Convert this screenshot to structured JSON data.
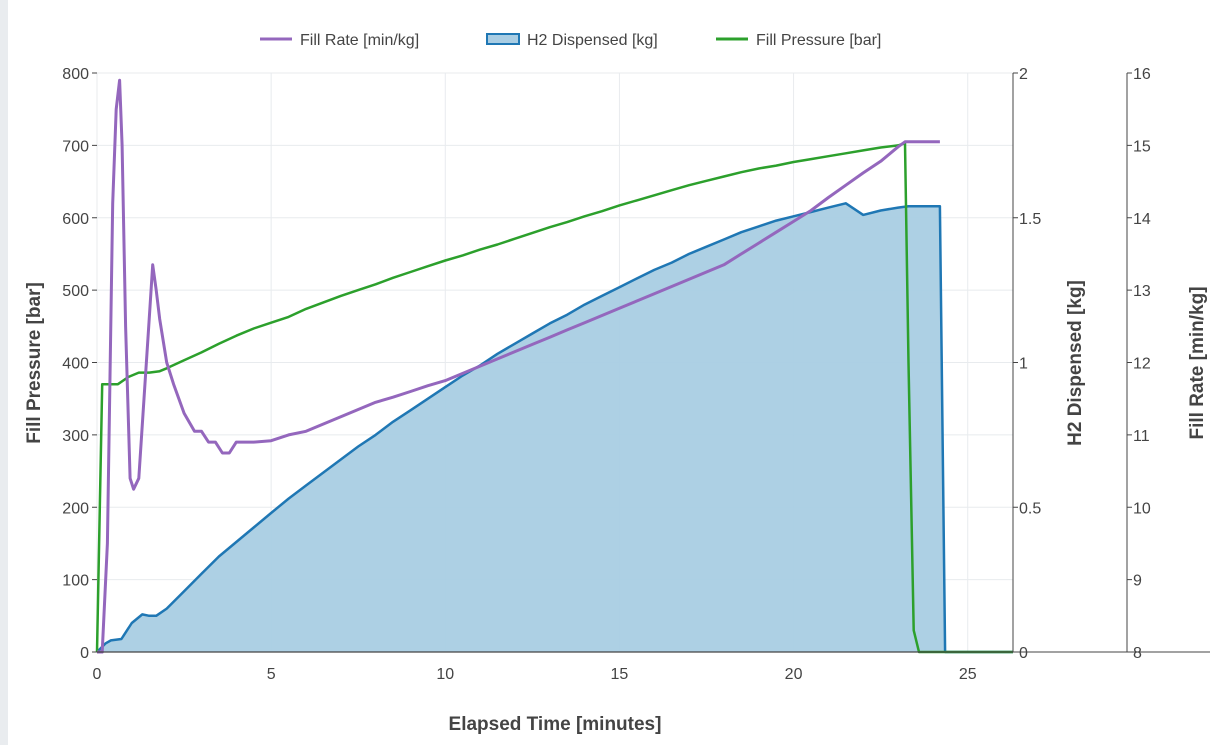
{
  "chart_data": {
    "type": "line",
    "xlabel": "Elapsed Time [minutes]",
    "xlim": [
      0,
      26.3
    ],
    "x_ticks": [
      "0",
      "5",
      "10",
      "15",
      "20",
      "25"
    ],
    "grid": true,
    "legend_position": "top-center",
    "axes": {
      "y_left": {
        "label": "Fill Pressure [bar]",
        "range": [
          0,
          800
        ],
        "ticks": [
          "0",
          "100",
          "200",
          "300",
          "400",
          "500",
          "600",
          "700",
          "800"
        ]
      },
      "y_right1": {
        "label": "H2 Dispensed [kg]",
        "range": [
          0,
          2
        ],
        "ticks": [
          "0",
          "0.5",
          "1",
          "1.5",
          "2"
        ]
      },
      "y_right2": {
        "label": "Fill Rate [min/kg]",
        "range": [
          8,
          16
        ],
        "ticks": [
          "8",
          "9",
          "10",
          "11",
          "12",
          "13",
          "14",
          "15",
          "16"
        ]
      }
    },
    "series": [
      {
        "name": "Fill Rate [min/kg]",
        "axis": "y_right2",
        "color": "#9467bd",
        "type": "line",
        "x": [
          0,
          0.15,
          0.3,
          0.45,
          0.55,
          0.65,
          0.72,
          0.82,
          0.95,
          1.05,
          1.2,
          1.35,
          1.5,
          1.6,
          1.7,
          1.8,
          2.0,
          2.2,
          2.5,
          2.8,
          3.0,
          3.2,
          3.4,
          3.6,
          3.8,
          4.0,
          4.2,
          4.5,
          5.0,
          5.5,
          6.0,
          6.5,
          7.0,
          7.5,
          8.0,
          8.5,
          9.0,
          9.5,
          10.0,
          10.5,
          11.0,
          11.5,
          12.0,
          12.5,
          13.0,
          13.5,
          14.0,
          14.5,
          15.0,
          15.5,
          16.0,
          16.5,
          17.0,
          17.5,
          18.0,
          18.5,
          19.0,
          19.5,
          20.0,
          20.5,
          21.0,
          21.5,
          22.0,
          22.5,
          23.0,
          23.2,
          24.2
        ],
        "y": [
          8.0,
          8.0,
          9.5,
          14.2,
          15.5,
          15.9,
          15.0,
          12.5,
          10.4,
          10.25,
          10.4,
          11.5,
          12.6,
          13.35,
          13.0,
          12.6,
          12.0,
          11.7,
          11.3,
          11.05,
          11.05,
          10.9,
          10.9,
          10.75,
          10.75,
          10.9,
          10.9,
          10.9,
          10.92,
          11.0,
          11.05,
          11.15,
          11.25,
          11.35,
          11.45,
          11.52,
          11.6,
          11.68,
          11.75,
          11.85,
          11.95,
          12.05,
          12.15,
          12.25,
          12.35,
          12.45,
          12.55,
          12.65,
          12.75,
          12.85,
          12.95,
          13.05,
          13.15,
          13.25,
          13.35,
          13.5,
          13.65,
          13.8,
          13.95,
          14.1,
          14.28,
          14.45,
          14.62,
          14.78,
          14.98,
          15.05,
          15.05
        ]
      },
      {
        "name": "H2 Dispensed [kg]",
        "axis": "y_right1",
        "color": "#1f77b4",
        "fill": "#a9cde3",
        "type": "area",
        "x": [
          0,
          0.25,
          0.4,
          0.7,
          1.0,
          1.3,
          1.5,
          1.7,
          2.0,
          2.5,
          3.0,
          3.5,
          4.0,
          4.5,
          5.0,
          5.5,
          6.0,
          6.5,
          7.0,
          7.5,
          8.0,
          8.5,
          9.0,
          9.5,
          10.0,
          10.5,
          11.0,
          11.5,
          12.0,
          12.5,
          13.0,
          13.5,
          14.0,
          14.5,
          15.0,
          15.5,
          16.0,
          16.5,
          17.0,
          17.5,
          18.0,
          18.5,
          19.0,
          19.5,
          20.0,
          20.5,
          21.0,
          21.5,
          22.0,
          22.5,
          23.0,
          23.3,
          24.2,
          24.35,
          26.3
        ],
        "y": [
          0,
          0.03,
          0.04,
          0.045,
          0.1,
          0.13,
          0.125,
          0.125,
          0.15,
          0.21,
          0.27,
          0.33,
          0.38,
          0.43,
          0.48,
          0.53,
          0.575,
          0.62,
          0.665,
          0.71,
          0.75,
          0.795,
          0.835,
          0.875,
          0.915,
          0.955,
          0.99,
          1.03,
          1.065,
          1.1,
          1.135,
          1.165,
          1.2,
          1.23,
          1.26,
          1.29,
          1.32,
          1.345,
          1.375,
          1.4,
          1.425,
          1.45,
          1.47,
          1.49,
          1.505,
          1.52,
          1.535,
          1.55,
          1.51,
          1.525,
          1.535,
          1.54,
          1.54,
          0,
          0
        ]
      },
      {
        "name": "Fill Pressure [bar]",
        "axis": "y_left",
        "color": "#2ca02c",
        "type": "line",
        "x": [
          0,
          0.15,
          0.3,
          0.6,
          0.9,
          1.2,
          1.5,
          1.8,
          2.0,
          2.5,
          3.0,
          3.5,
          4.0,
          4.5,
          5.0,
          5.5,
          6.0,
          6.5,
          7.0,
          7.5,
          8.0,
          8.5,
          9.0,
          9.5,
          10.0,
          10.5,
          11.0,
          11.5,
          12.0,
          12.5,
          13.0,
          13.5,
          14.0,
          14.5,
          15.0,
          15.5,
          16.0,
          16.5,
          17.0,
          17.5,
          18.0,
          18.5,
          19.0,
          19.5,
          20.0,
          20.5,
          21.0,
          21.5,
          22.0,
          22.5,
          23.0,
          23.2,
          23.3,
          23.45,
          23.6,
          26.3
        ],
        "y": [
          0,
          370,
          370,
          370,
          380,
          386,
          386,
          388,
          392,
          403,
          414,
          426,
          437,
          447,
          455,
          463,
          474,
          483,
          492,
          500,
          508,
          517,
          525,
          533,
          541,
          548,
          556,
          563,
          571,
          579,
          587,
          594,
          602,
          609,
          617,
          624,
          631,
          638,
          645,
          651,
          657,
          663,
          668,
          672,
          677,
          681,
          685,
          689,
          693,
          697,
          700,
          703,
          400,
          30,
          0,
          0
        ]
      }
    ]
  }
}
